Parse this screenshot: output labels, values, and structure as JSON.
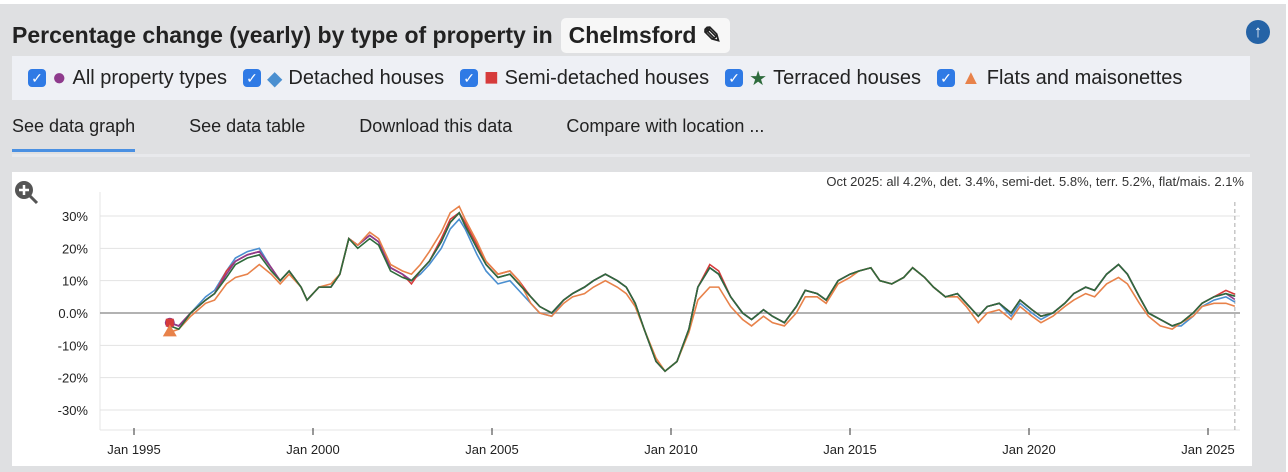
{
  "title": "Percentage change (yearly) by type of property in",
  "location": "Chelmsford",
  "legend": [
    {
      "label": "All property types",
      "color": "#8e3a8c",
      "marker": "circle",
      "checked": true
    },
    {
      "label": "Detached houses",
      "color": "#4a8fd0",
      "marker": "diamond",
      "checked": true
    },
    {
      "label": "Semi-detached houses",
      "color": "#d63b3b",
      "marker": "square",
      "checked": true
    },
    {
      "label": "Terraced houses",
      "color": "#2e6b3c",
      "marker": "star",
      "checked": true
    },
    {
      "label": "Flats and maisonettes",
      "color": "#e8824a",
      "marker": "triangle",
      "checked": true
    }
  ],
  "tabs": [
    "See data graph",
    "See data table",
    "Download this data",
    "Compare with location ..."
  ],
  "annotation": "Oct 2025: all 4.2%, det. 3.4%, semi-det. 5.8%, terr. 5.2%, flat/mais. 2.1%",
  "chart_data": {
    "type": "line",
    "ylim": [
      -35,
      35
    ],
    "yticks": [
      "30%",
      "20%",
      "10%",
      "0.0%",
      "-10%",
      "-20%",
      "-30%"
    ],
    "ytick_values": [
      30,
      20,
      10,
      0,
      -10,
      -20,
      -30
    ],
    "xticks": [
      "Jan 1995",
      "Jan 2000",
      "Jan 2005",
      "Jan 2010",
      "Jan 2015",
      "Jan 2020",
      "Jan 2025"
    ],
    "grid": true,
    "x": [
      "1996-01",
      "1996-04",
      "1996-08",
      "1997-01",
      "1997-04",
      "1997-08",
      "1997-11",
      "1998-03",
      "1998-07",
      "1998-11",
      "1999-02",
      "1999-05",
      "1999-09",
      "1999-11",
      "2000-03",
      "2000-07",
      "2000-10",
      "2001-01",
      "2001-04",
      "2001-08",
      "2001-11",
      "2002-03",
      "2002-07",
      "2002-10",
      "2003-01",
      "2003-04",
      "2003-08",
      "2003-11",
      "2004-02",
      "2004-04",
      "2004-08",
      "2004-11",
      "2005-03",
      "2005-07",
      "2005-10",
      "2006-02",
      "2006-05",
      "2006-09",
      "2007-01",
      "2007-04",
      "2007-08",
      "2007-11",
      "2008-03",
      "2008-07",
      "2008-10",
      "2009-01",
      "2009-04",
      "2009-08",
      "2009-11",
      "2010-03",
      "2010-07",
      "2010-10",
      "2011-02",
      "2011-05",
      "2011-09",
      "2012-01",
      "2012-04",
      "2012-08",
      "2012-11",
      "2013-03",
      "2013-07",
      "2013-10",
      "2014-02",
      "2014-05",
      "2014-09",
      "2015-01",
      "2015-04",
      "2015-08",
      "2015-11",
      "2016-03",
      "2016-07",
      "2016-10",
      "2017-02",
      "2017-05",
      "2017-09",
      "2018-01",
      "2018-04",
      "2018-08",
      "2018-11",
      "2019-03",
      "2019-07",
      "2019-10",
      "2020-02",
      "2020-05",
      "2020-09",
      "2021-01",
      "2021-04",
      "2021-08",
      "2021-11",
      "2022-03",
      "2022-07",
      "2022-10",
      "2023-02",
      "2023-05",
      "2023-09",
      "2024-01",
      "2024-04",
      "2024-08",
      "2024-11",
      "2025-03",
      "2025-07",
      "2025-10"
    ],
    "series": [
      {
        "name": "All property types",
        "values": [
          -3,
          -4,
          0,
          4,
          6,
          12,
          16,
          18,
          19,
          14,
          10,
          13,
          8,
          4,
          8,
          8,
          12,
          23,
          21,
          24,
          22,
          14,
          12,
          10,
          13,
          16,
          22,
          28,
          31,
          27,
          20,
          15,
          11,
          12,
          9,
          5,
          2,
          0,
          4,
          6,
          8,
          10,
          12,
          10,
          8,
          3,
          -5,
          -15,
          -18,
          -15,
          -5,
          8,
          14,
          12,
          5,
          0,
          -2,
          1,
          -1,
          -3,
          2,
          7,
          6,
          4,
          10,
          12,
          13,
          14,
          10,
          9,
          11,
          14,
          11,
          8,
          5,
          6,
          3,
          -1,
          2,
          3,
          0,
          4,
          1,
          -1,
          0,
          3,
          6,
          8,
          7,
          12,
          15,
          12,
          5,
          0,
          -2,
          -4,
          -3,
          0,
          3,
          5,
          6,
          4.2
        ]
      },
      {
        "name": "Detached houses",
        "values": [
          -3,
          -4,
          0,
          5,
          7,
          13,
          17,
          19,
          20,
          14,
          10,
          13,
          8,
          4,
          8,
          8,
          12,
          23,
          21,
          24,
          22,
          14,
          12,
          10,
          12,
          15,
          20,
          26,
          29,
          26,
          18,
          13,
          9,
          10,
          7,
          3,
          0,
          -1,
          4,
          6,
          8,
          10,
          12,
          10,
          8,
          3,
          -5,
          -15,
          -18,
          -15,
          -5,
          8,
          14,
          12,
          5,
          0,
          -2,
          1,
          -1,
          -3,
          2,
          7,
          6,
          4,
          10,
          12,
          13,
          14,
          10,
          9,
          11,
          14,
          11,
          8,
          5,
          6,
          3,
          -1,
          2,
          3,
          -1,
          3,
          0,
          -2,
          0,
          3,
          6,
          8,
          7,
          12,
          15,
          12,
          5,
          0,
          -2,
          -4,
          -4,
          -1,
          2,
          4,
          5,
          3.4
        ]
      },
      {
        "name": "Semi-detached houses",
        "values": [
          -3,
          -4,
          0,
          4,
          6,
          13,
          16,
          18,
          19,
          14,
          10,
          13,
          8,
          4,
          8,
          8,
          12,
          23,
          21,
          24,
          22,
          14,
          12,
          9,
          13,
          16,
          23,
          29,
          31,
          28,
          21,
          16,
          12,
          13,
          10,
          5,
          2,
          0,
          4,
          6,
          8,
          10,
          12,
          10,
          8,
          3,
          -5,
          -15,
          -18,
          -15,
          -5,
          8,
          15,
          13,
          5,
          0,
          -2,
          1,
          -1,
          -3,
          2,
          7,
          6,
          4,
          10,
          12,
          13,
          14,
          10,
          9,
          11,
          14,
          11,
          8,
          5,
          6,
          3,
          -1,
          2,
          3,
          0,
          4,
          1,
          -1,
          0,
          3,
          6,
          8,
          7,
          12,
          15,
          12,
          5,
          0,
          -2,
          -4,
          -3,
          0,
          3,
          5,
          7,
          5.8
        ]
      },
      {
        "name": "Terraced houses",
        "values": [
          -4,
          -5,
          0,
          4,
          6,
          11,
          15,
          17,
          18,
          13,
          10,
          13,
          8,
          4,
          8,
          8,
          12,
          23,
          20,
          23,
          21,
          13,
          11,
          10,
          13,
          16,
          22,
          28,
          31,
          27,
          20,
          15,
          11,
          12,
          9,
          5,
          2,
          0,
          4,
          6,
          8,
          10,
          12,
          10,
          8,
          3,
          -5,
          -15,
          -18,
          -15,
          -5,
          8,
          14,
          12,
          5,
          0,
          -2,
          1,
          -1,
          -3,
          2,
          7,
          6,
          4,
          10,
          12,
          13,
          14,
          10,
          9,
          11,
          14,
          11,
          8,
          5,
          6,
          3,
          -1,
          2,
          3,
          0,
          4,
          1,
          -1,
          0,
          3,
          6,
          8,
          7,
          12,
          15,
          12,
          5,
          0,
          -2,
          -4,
          -3,
          0,
          3,
          5,
          6,
          5.2
        ]
      },
      {
        "name": "Flats and maisonettes",
        "values": [
          -6,
          -5,
          -1,
          3,
          4,
          9,
          11,
          12,
          15,
          12,
          9,
          12,
          8,
          4,
          8,
          9,
          12,
          23,
          21,
          25,
          23,
          15,
          13,
          12,
          15,
          19,
          25,
          31,
          33,
          29,
          22,
          16,
          12,
          13,
          10,
          3,
          0,
          -1,
          3,
          5,
          6,
          8,
          10,
          8,
          6,
          2,
          -5,
          -14,
          -18,
          -15,
          -6,
          4,
          8,
          8,
          2,
          -2,
          -4,
          -1,
          -3,
          -4,
          0,
          5,
          5,
          3,
          9,
          11,
          13,
          14,
          10,
          9,
          11,
          14,
          11,
          8,
          5,
          5,
          2,
          -3,
          0,
          1,
          -2,
          2,
          -1,
          -3,
          -1,
          2,
          4,
          6,
          5,
          9,
          11,
          9,
          3,
          -1,
          -4,
          -5,
          -3,
          -1,
          2,
          3,
          3,
          2.1
        ]
      }
    ]
  }
}
